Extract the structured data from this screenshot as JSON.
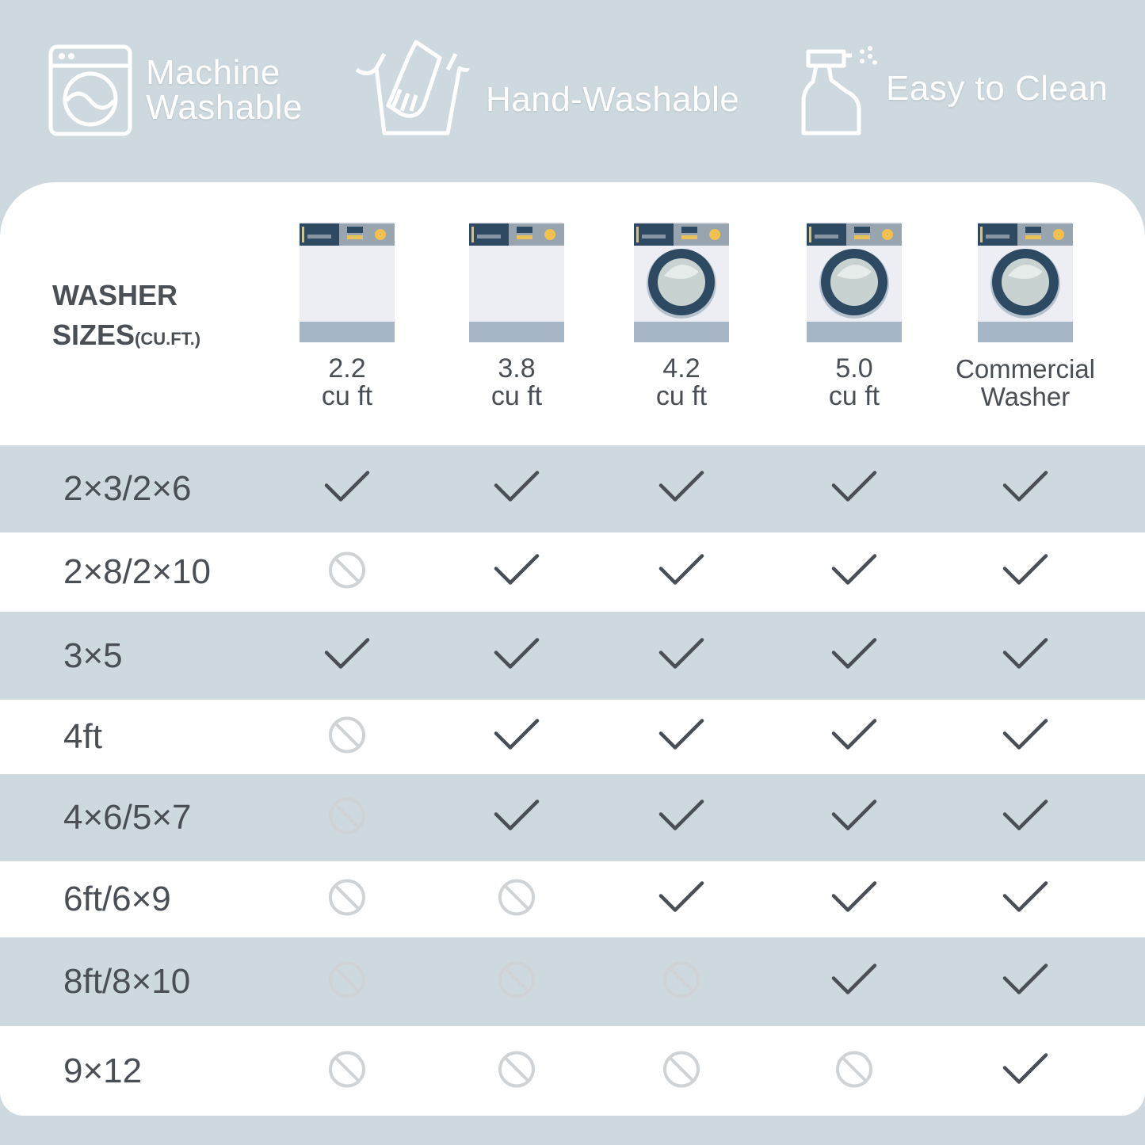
{
  "features": [
    {
      "icon": "washing-machine-icon",
      "label_lines": [
        "Machine",
        "Washable"
      ]
    },
    {
      "icon": "hand-wash-icon",
      "label_lines": [
        "Hand-Washable"
      ]
    },
    {
      "icon": "spray-bottle-icon",
      "label_lines": [
        "Easy to Clean"
      ]
    }
  ],
  "table": {
    "header_label": "WASHER",
    "header_label2": "SIZES",
    "header_unit": "(CU.FT.)",
    "columns": [
      {
        "line1": "2.2",
        "line2": "cu ft",
        "icon": "washer-no-door-icon"
      },
      {
        "line1": "3.8",
        "line2": "cu ft",
        "icon": "washer-no-door-icon"
      },
      {
        "line1": "4.2",
        "line2": "cu ft",
        "icon": "front-load-washer-icon"
      },
      {
        "line1": "5.0",
        "line2": "cu ft",
        "icon": "front-load-washer-icon"
      },
      {
        "line1": "Commercial",
        "line2": "Washer",
        "icon": "front-load-washer-icon"
      }
    ],
    "rows": [
      {
        "size": "2×3/2×6",
        "fits": [
          true,
          true,
          true,
          true,
          true
        ]
      },
      {
        "size": "2×8/2×10",
        "fits": [
          false,
          true,
          true,
          true,
          true
        ]
      },
      {
        "size": "3×5",
        "fits": [
          true,
          true,
          true,
          true,
          true
        ]
      },
      {
        "size": "4ft",
        "fits": [
          false,
          true,
          true,
          true,
          true
        ]
      },
      {
        "size": "4×6/5×7",
        "fits": [
          false,
          true,
          true,
          true,
          true
        ]
      },
      {
        "size": "6ft/6×9",
        "fits": [
          false,
          false,
          true,
          true,
          true
        ]
      },
      {
        "size": "8ft/8×10",
        "fits": [
          false,
          false,
          false,
          true,
          true
        ]
      },
      {
        "size": "9×12",
        "fits": [
          false,
          false,
          false,
          false,
          true
        ]
      }
    ]
  },
  "colors": {
    "background": "#cdd9df",
    "text": "#4a4f55",
    "check": "#4a4f55",
    "no": "#d0d3d6"
  }
}
